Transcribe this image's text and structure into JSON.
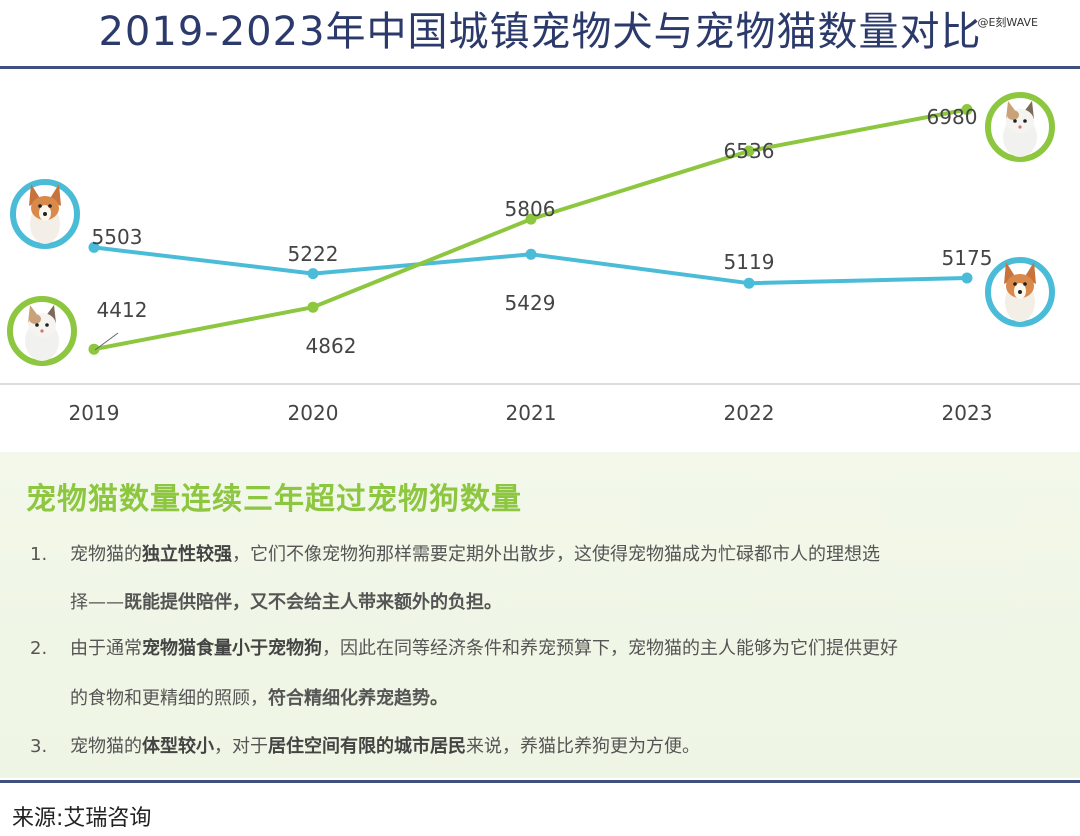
{
  "title": "2019-2023年中国城镇宠物犬与宠物猫数量对比",
  "watermark": "@E刻WAVE",
  "chart_data": {
    "type": "line",
    "categories": [
      "2019",
      "2020",
      "2021",
      "2022",
      "2023"
    ],
    "series": [
      {
        "key": "dog",
        "values": [
          5503,
          5222,
          5429,
          5119,
          5175
        ],
        "color": "#4bbcd8"
      },
      {
        "key": "cat",
        "values": [
          4412,
          4862,
          5806,
          6536,
          6980
        ],
        "color": "#8dc63f"
      }
    ],
    "labels": {
      "dog": [
        "5503",
        "5222",
        "5429",
        "5119",
        "5175"
      ],
      "cat": [
        "4412",
        "4862",
        "5806",
        "6536",
        "6980"
      ]
    },
    "ylim": [
      4200,
      7200
    ],
    "grid": false
  },
  "panel": {
    "heading": "宠物猫数量连续三年超过宠物狗数量",
    "items": [
      {
        "num": "1.",
        "line1_a": "宠物猫的",
        "line1_b": "独立性较强",
        "line1_c": "，它们不像宠物狗那样需要定期外出散步，这使得宠物猫成为忙碌都市人的理想选",
        "line2_a": "择——",
        "line2_b": "既能提供陪伴，又不会给主人带来额外的负担。"
      },
      {
        "num": "2.",
        "line1_a": "由于通常",
        "line1_b": "宠物猫食量小于宠物狗",
        "line1_c": "，因此在同等经济条件和养宠预算下，宠物猫的主人能够为它们提供更好",
        "line2_a": "的食物和更精细的照顾，",
        "line2_b": "符合精细化养宠趋势。"
      },
      {
        "num": "3.",
        "line1_a": "宠物猫的",
        "line1_b": "体型较小",
        "line1_c": "，对于",
        "line1_d": "居住空间有限的城市居民",
        "line1_e": "来说，养猫比养狗更为方便。"
      }
    ]
  },
  "source": "来源:艾瑞咨询",
  "icons": [
    "corgi-dog-icon",
    "cat-icon"
  ]
}
